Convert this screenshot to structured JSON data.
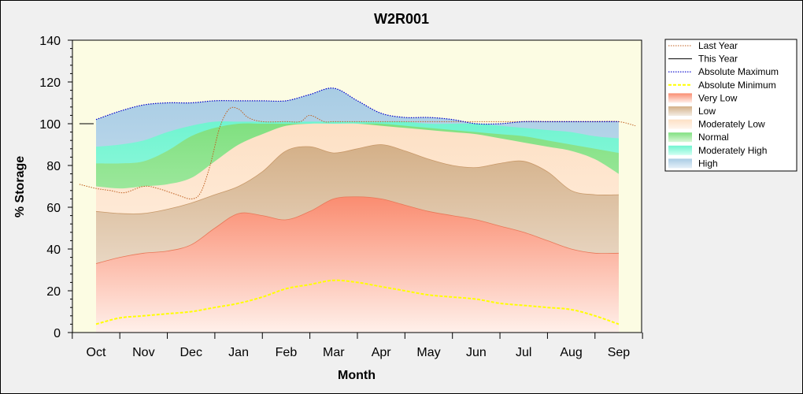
{
  "chart_data": {
    "type": "area",
    "title": "W2R001",
    "xlabel": "Month",
    "ylabel": "% Storage",
    "ylim": [
      0,
      140
    ],
    "yticks": [
      0,
      20,
      40,
      60,
      80,
      100,
      120,
      140
    ],
    "categories": [
      "Oct",
      "Nov",
      "Dec",
      "Jan",
      "Feb",
      "Mar",
      "Apr",
      "May",
      "Jun",
      "Jul",
      "Aug",
      "Sep"
    ],
    "colors": {
      "plot_background": "#fcfce3",
      "very_low": "#fa8c70",
      "low": "#d8b894",
      "moderately_low": "#fde2c8",
      "normal": "#90e890",
      "moderately_high": "#80f8d8",
      "high": "#b8d8ea",
      "last_year": "#c06020",
      "this_year": "#000000",
      "absolute_maximum": "#0000cc",
      "absolute_minimum": "#ffff00"
    },
    "bands": {
      "x": [
        0,
        0.5,
        1,
        1.5,
        2,
        2.5,
        3,
        3.5,
        4,
        4.5,
        5,
        5.5,
        6,
        6.5,
        7,
        7.5,
        8,
        8.5,
        9,
        9.5,
        10,
        10.5,
        11
      ],
      "very_low_top": [
        33,
        36,
        38,
        39,
        42,
        50,
        57,
        56,
        54,
        58,
        64,
        65,
        64,
        61,
        58,
        56,
        54,
        51,
        48,
        44,
        40,
        38,
        38
      ],
      "low_top": [
        58,
        57,
        57,
        59,
        62,
        66,
        70,
        77,
        87,
        89,
        86,
        88,
        90,
        87,
        83,
        80,
        79,
        81,
        82,
        77,
        68,
        66,
        66
      ],
      "moderately_low_top": [
        70,
        69,
        70,
        71,
        74,
        82,
        90,
        95,
        99,
        100,
        100,
        100,
        99,
        98,
        97,
        96,
        95,
        93,
        91,
        89,
        87,
        83,
        76
      ],
      "normal_top": [
        81,
        81,
        82,
        87,
        94,
        98,
        100,
        100,
        100,
        100,
        100,
        100,
        100,
        99,
        98,
        97,
        96,
        95,
        94,
        92,
        90,
        88,
        86
      ],
      "moderately_high_top": [
        89,
        90,
        92,
        96,
        99,
        101,
        101,
        101,
        101,
        101,
        101,
        101,
        101,
        101,
        100,
        100,
        100,
        99,
        98,
        97,
        96,
        94,
        93
      ],
      "high_top": [
        102,
        106,
        109,
        110,
        110,
        111,
        111,
        111,
        111,
        114,
        117,
        111,
        105,
        103,
        103,
        102,
        100,
        100,
        101,
        101,
        101,
        101,
        101
      ]
    },
    "series": [
      {
        "name": "Last Year",
        "style": "dotted",
        "x": [
          -0.35,
          0,
          0.3,
          0.6,
          1,
          1.3,
          1.7,
          2,
          2.2,
          2.4,
          2.6,
          2.8,
          3,
          3.2,
          3.5,
          4,
          4.3,
          4.5,
          4.8,
          5,
          5.5,
          6,
          6.5,
          7,
          7.5,
          8,
          8.5,
          9,
          9.5,
          10,
          10.5,
          11,
          11.35
        ],
        "y": [
          71,
          69,
          68,
          67,
          70,
          69,
          66,
          64,
          67,
          80,
          98,
          107,
          107,
          103,
          101,
          101,
          101,
          104,
          101,
          101,
          101,
          101,
          101,
          101,
          101,
          101,
          101,
          101,
          101,
          101,
          101,
          101,
          99
        ]
      },
      {
        "name": "This Year",
        "style": "solid",
        "x": [
          -0.35,
          -0.05
        ],
        "y": [
          100,
          100
        ]
      },
      {
        "name": "Absolute Maximum",
        "style": "dotted",
        "x": [
          0,
          0.5,
          1,
          1.5,
          2,
          2.5,
          3,
          3.5,
          4,
          4.5,
          5,
          5.5,
          6,
          6.5,
          7,
          7.5,
          8,
          8.5,
          9,
          9.5,
          10,
          10.5,
          11
        ],
        "y": [
          102,
          106,
          109,
          110,
          110,
          111,
          111,
          111,
          111,
          114,
          117,
          111,
          105,
          103,
          103,
          102,
          100,
          100,
          101,
          101,
          101,
          101,
          101
        ]
      },
      {
        "name": "Absolute Minimum",
        "style": "dashed",
        "x": [
          0,
          0.5,
          1,
          1.5,
          2,
          2.5,
          3,
          3.5,
          4,
          4.5,
          5,
          5.5,
          6,
          6.5,
          7,
          7.5,
          8,
          8.5,
          9,
          9.5,
          10,
          10.5,
          11
        ],
        "y": [
          4,
          7,
          8,
          9,
          10,
          12,
          14,
          17,
          21,
          23,
          25,
          24,
          22,
          20,
          18,
          17,
          16,
          14,
          13,
          12,
          11,
          8,
          4
        ]
      }
    ],
    "legend": {
      "placement": "right",
      "entries": [
        "Last Year",
        "This Year",
        "Absolute Maximum",
        "Absolute Minimum",
        "Very Low",
        "Low",
        "Moderately Low",
        "Normal",
        "Moderately High",
        "High"
      ]
    },
    "grid": false
  }
}
